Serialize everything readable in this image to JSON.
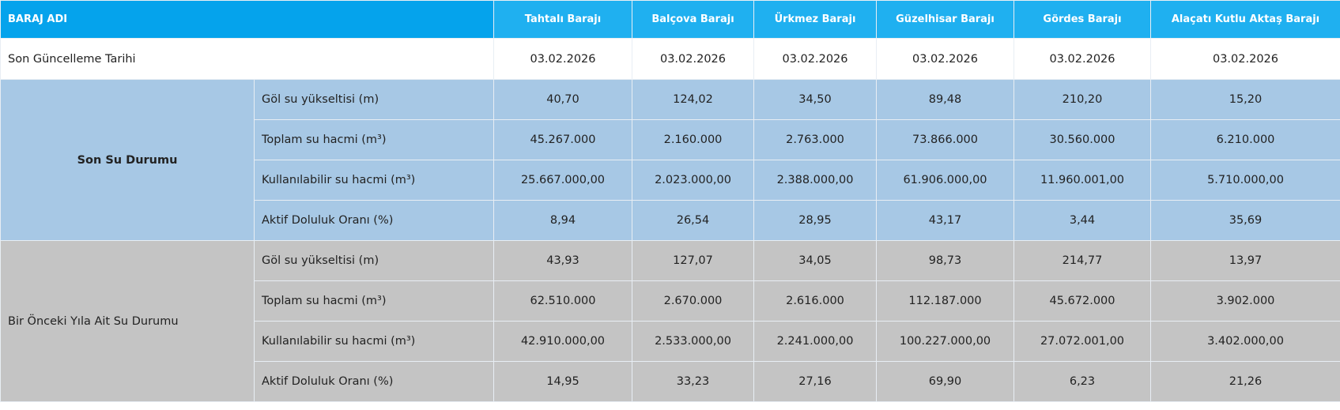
{
  "header": {
    "label": "BARAJ ADI",
    "dams": [
      "Tahtalı Barajı",
      "Balçova Barajı",
      "Ürkmez Barajı",
      "Güzelhisar Barajı",
      "Gördes Barajı",
      "Alaçatı Kutlu Aktaş Barajı"
    ]
  },
  "update_row": {
    "label": "Son Güncelleme Tarihi",
    "values": [
      "03.02.2026",
      "03.02.2026",
      "03.02.2026",
      "03.02.2026",
      "03.02.2026",
      "03.02.2026"
    ]
  },
  "groups": [
    {
      "label": "Son Su Durumu",
      "rows": [
        {
          "label": "Göl su yükseltisi (m)",
          "values": [
            "40,70",
            "124,02",
            "34,50",
            "89,48",
            "210,20",
            "15,20"
          ]
        },
        {
          "label": "Toplam su hacmi (m³)",
          "values": [
            "45.267.000",
            "2.160.000",
            "2.763.000",
            "73.866.000",
            "30.560.000",
            "6.210.000"
          ]
        },
        {
          "label": "Kullanılabilir su hacmi (m³)",
          "values": [
            "25.667.000,00",
            "2.023.000,00",
            "2.388.000,00",
            "61.906.000,00",
            "11.960.001,00",
            "5.710.000,00"
          ]
        },
        {
          "label": "Aktif Doluluk Oranı (%)",
          "values": [
            "8,94",
            "26,54",
            "28,95",
            "43,17",
            "3,44",
            "35,69"
          ]
        }
      ]
    },
    {
      "label": "Bir Önceki Yıla Ait Su Durumu",
      "rows": [
        {
          "label": "Göl su yükseltisi (m)",
          "values": [
            "43,93",
            "127,07",
            "34,05",
            "98,73",
            "214,77",
            "13,97"
          ]
        },
        {
          "label": "Toplam su hacmi (m³)",
          "values": [
            "62.510.000",
            "2.670.000",
            "2.616.000",
            "112.187.000",
            "45.672.000",
            "3.902.000"
          ]
        },
        {
          "label": "Kullanılabilir su hacmi (m³)",
          "values": [
            "42.910.000,00",
            "2.533.000,00",
            "2.241.000,00",
            "100.227.000,00",
            "27.072.001,00",
            "3.402.000,00"
          ]
        },
        {
          "label": "Aktif Doluluk Oranı (%)",
          "values": [
            "14,95",
            "33,23",
            "27,16",
            "69,90",
            "6,23",
            "21,26"
          ]
        }
      ]
    }
  ]
}
